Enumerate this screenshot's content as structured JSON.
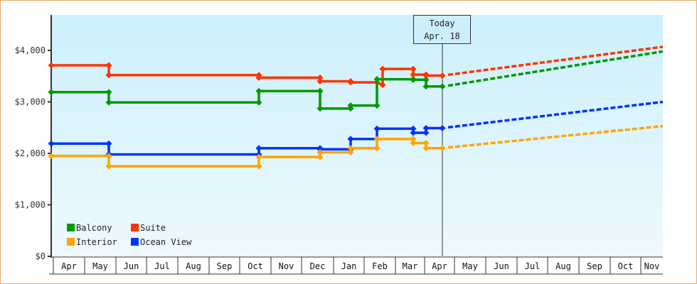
{
  "chart_data": {
    "type": "line",
    "title": "",
    "xlabel": "",
    "ylabel": "",
    "ylim": [
      0,
      4700
    ],
    "yticks": [
      {
        "value": 0,
        "label": "$0"
      },
      {
        "value": 1000,
        "label": "$1,000"
      },
      {
        "value": 2000,
        "label": "$2,000"
      },
      {
        "value": 3000,
        "label": "$3,000"
      },
      {
        "value": 4000,
        "label": "$4,000"
      }
    ],
    "x_months": [
      "Apr",
      "May",
      "Jun",
      "Jul",
      "Aug",
      "Sep",
      "Oct",
      "Nov",
      "Dec",
      "Jan",
      "Feb",
      "Mar",
      "Apr",
      "May",
      "Jun",
      "Jul",
      "Aug",
      "Sep",
      "Oct",
      "Nov"
    ],
    "grid": false,
    "legend_position": "bottom-left inside",
    "today_marker": {
      "line1": "Today",
      "line2": "Apr. 18"
    },
    "series": [
      {
        "name": "Balcony",
        "color": "#009900",
        "history": [
          [
            71,
            3190
          ],
          [
            152,
            3190
          ],
          [
            152,
            2990
          ],
          [
            363,
            2990
          ],
          [
            363,
            3210
          ],
          [
            449,
            3210
          ],
          [
            449,
            2870
          ],
          [
            492,
            2870
          ],
          [
            492,
            2930
          ],
          [
            529,
            2930
          ],
          [
            529,
            3440
          ],
          [
            580,
            3440
          ],
          [
            580,
            3430
          ],
          [
            598,
            3430
          ],
          [
            598,
            3300
          ],
          [
            621,
            3300
          ]
        ],
        "forecast": [
          [
            621,
            3300
          ],
          [
            931,
            3980
          ]
        ]
      },
      {
        "name": "Suite",
        "color": "#ff3300",
        "history": [
          [
            71,
            3710
          ],
          [
            152,
            3710
          ],
          [
            152,
            3520
          ],
          [
            363,
            3520
          ],
          [
            363,
            3470
          ],
          [
            449,
            3470
          ],
          [
            449,
            3400
          ],
          [
            492,
            3400
          ],
          [
            492,
            3380
          ],
          [
            529,
            3380
          ],
          [
            537,
            3330
          ],
          [
            537,
            3640
          ],
          [
            580,
            3640
          ],
          [
            580,
            3530
          ],
          [
            598,
            3530
          ],
          [
            598,
            3510
          ],
          [
            621,
            3510
          ]
        ],
        "forecast": [
          [
            621,
            3510
          ],
          [
            931,
            4070
          ]
        ]
      },
      {
        "name": "Interior",
        "color": "#ffa500",
        "history": [
          [
            71,
            1950
          ],
          [
            152,
            1950
          ],
          [
            152,
            1750
          ],
          [
            363,
            1750
          ],
          [
            363,
            1930
          ],
          [
            449,
            1930
          ],
          [
            449,
            2020
          ],
          [
            492,
            2020
          ],
          [
            492,
            2100
          ],
          [
            529,
            2100
          ],
          [
            529,
            2280
          ],
          [
            580,
            2280
          ],
          [
            580,
            2200
          ],
          [
            598,
            2200
          ],
          [
            598,
            2100
          ],
          [
            621,
            2100
          ]
        ],
        "forecast": [
          [
            621,
            2100
          ],
          [
            931,
            2530
          ]
        ]
      },
      {
        "name": "Ocean View",
        "color": "#0033ff",
        "history": [
          [
            71,
            2190
          ],
          [
            152,
            2190
          ],
          [
            152,
            1980
          ],
          [
            363,
            1980
          ],
          [
            363,
            2100
          ],
          [
            449,
            2100
          ],
          [
            449,
            2080
          ],
          [
            492,
            2080
          ],
          [
            492,
            2280
          ],
          [
            529,
            2280
          ],
          [
            529,
            2480
          ],
          [
            580,
            2480
          ],
          [
            580,
            2400
          ],
          [
            598,
            2400
          ],
          [
            598,
            2490
          ],
          [
            621,
            2490
          ]
        ],
        "forecast": [
          [
            621,
            2490
          ],
          [
            931,
            3000
          ]
        ]
      }
    ]
  }
}
